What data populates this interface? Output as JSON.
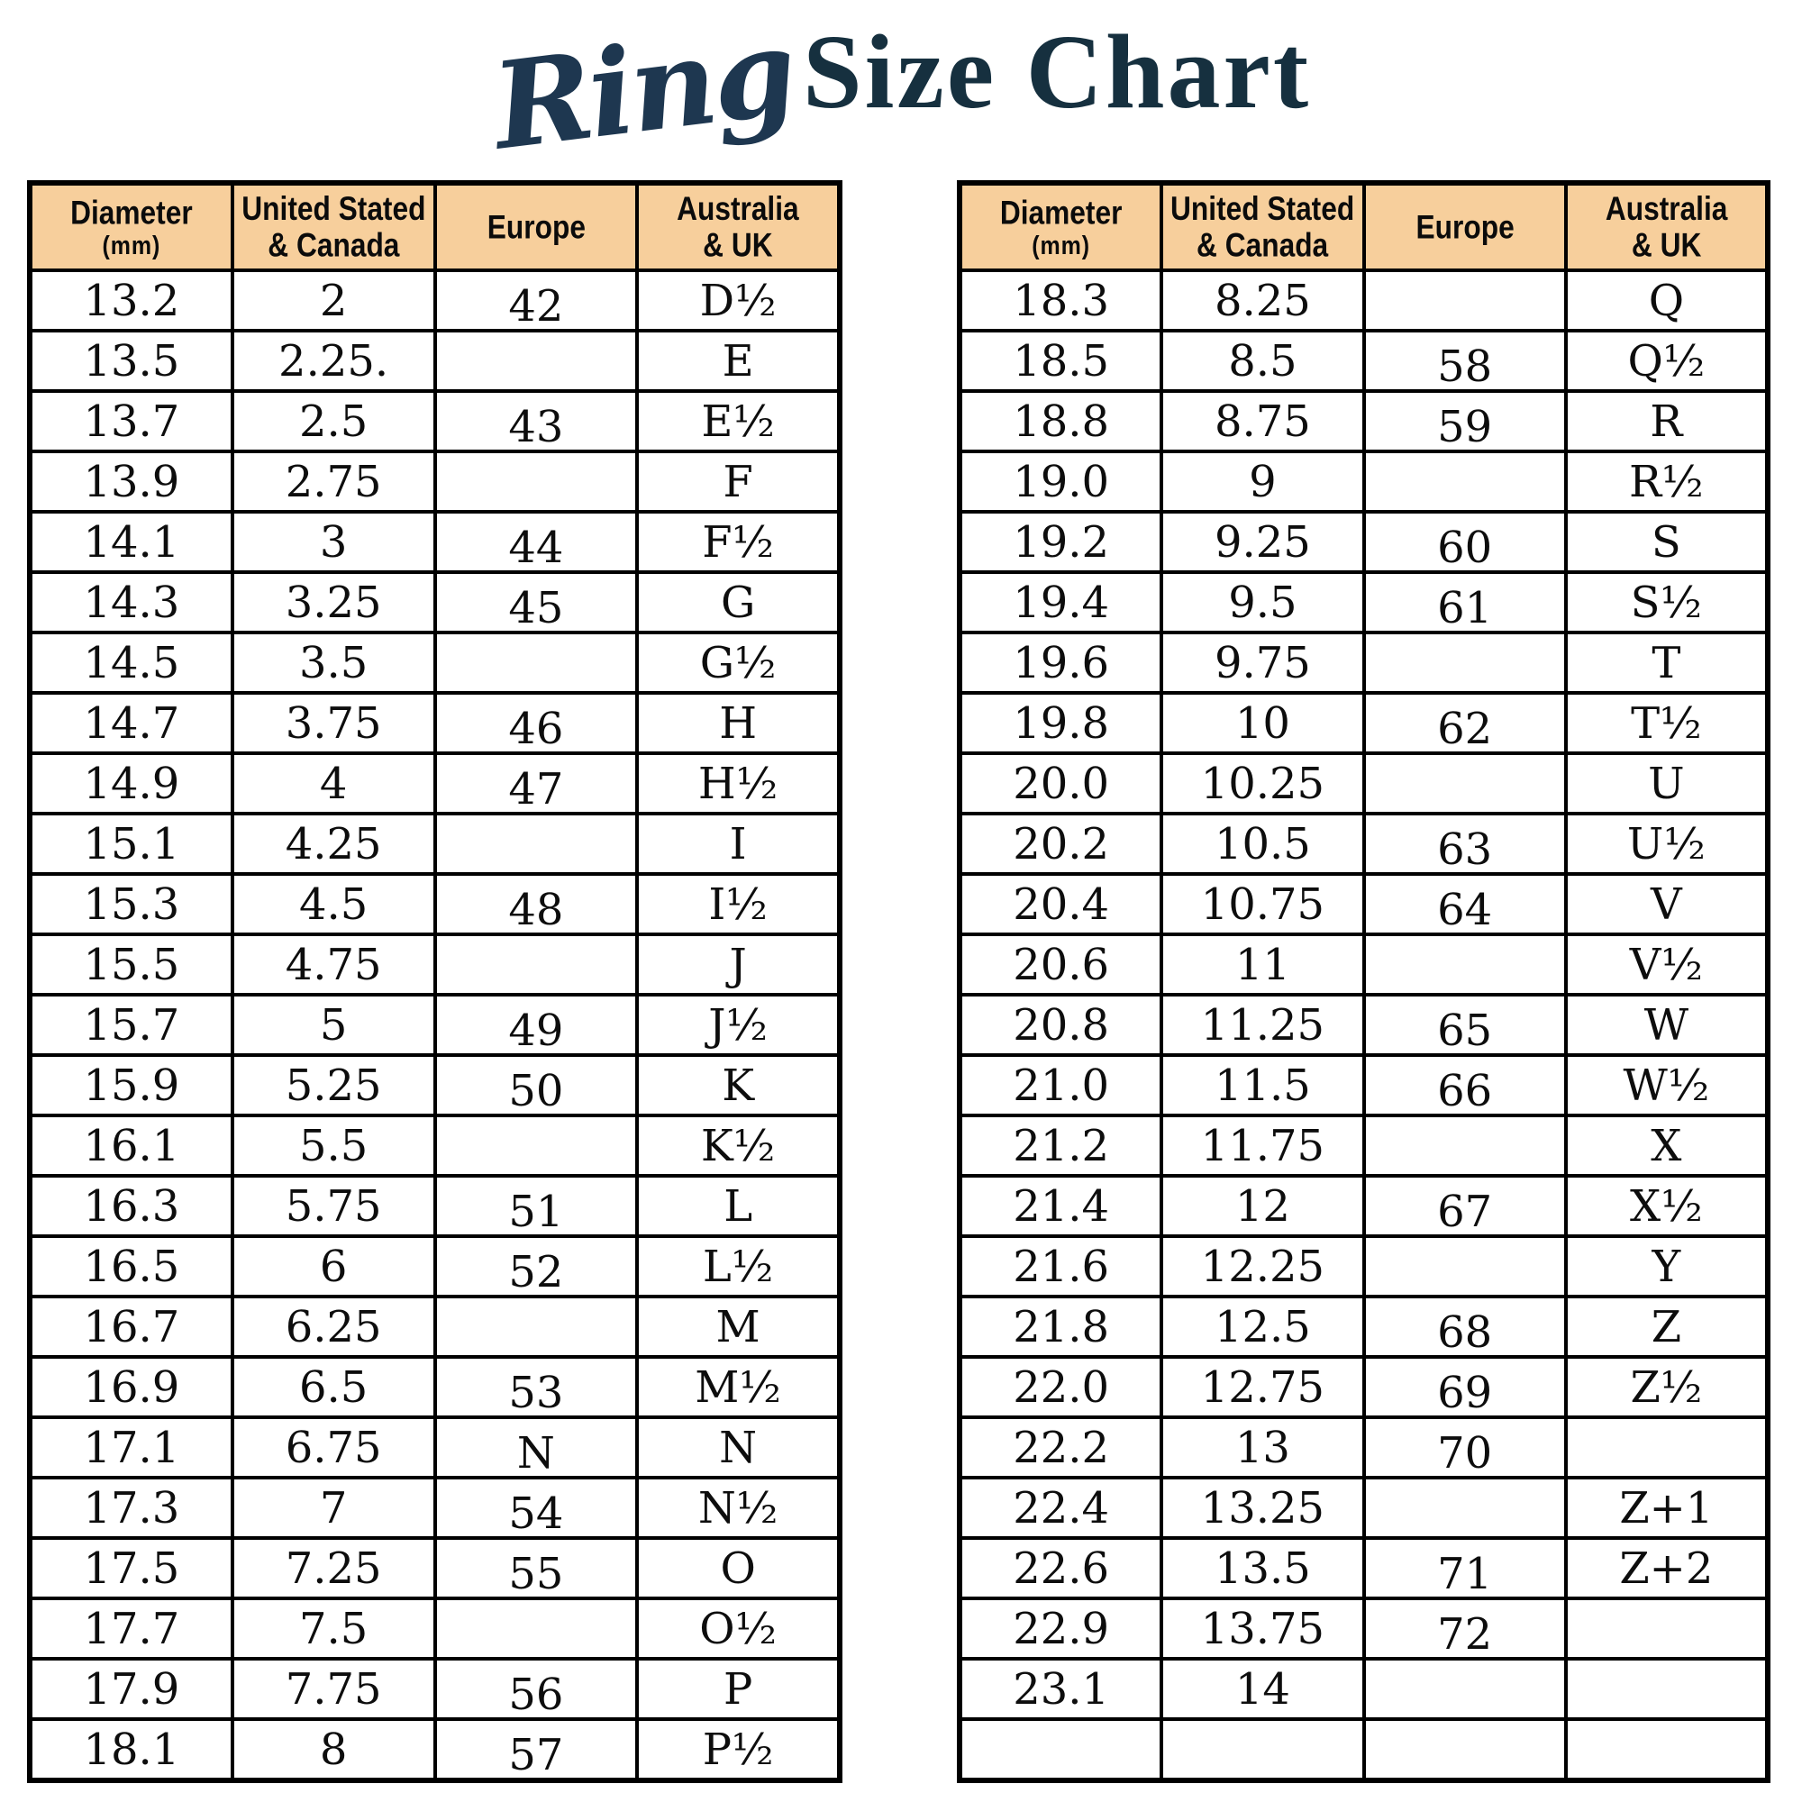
{
  "title": {
    "script": "Ring",
    "main": "Size Chart"
  },
  "colors": {
    "header_bg": "#f7cf9c",
    "border": "#000000",
    "title_navy": "#1e3750",
    "cell_text": "#0d0d0d",
    "page_bg": "#ffffff"
  },
  "tables": [
    {
      "name": "left-table",
      "columns": [
        {
          "key": "diameter",
          "label_line1": "Diameter",
          "label_line2": "(mm)"
        },
        {
          "key": "us-canada",
          "label_line1": "United Stated",
          "label_line2": "& Canada"
        },
        {
          "key": "europe",
          "label_line1": "Europe",
          "label_line2": ""
        },
        {
          "key": "australia-uk",
          "label_line1": "Australia",
          "label_line2": "& UK"
        }
      ],
      "rows": [
        [
          "13.2",
          "2",
          "42",
          "D½"
        ],
        [
          "13.5",
          "2.25.",
          "",
          "E"
        ],
        [
          "13.7",
          "2.5",
          "43",
          "E½"
        ],
        [
          "13.9",
          "2.75",
          "",
          "F"
        ],
        [
          "14.1",
          "3",
          "44",
          "F½"
        ],
        [
          "14.3",
          "3.25",
          "45",
          "G"
        ],
        [
          "14.5",
          "3.5",
          "",
          "G½"
        ],
        [
          "14.7",
          "3.75",
          "46",
          "H"
        ],
        [
          "14.9",
          "4",
          "47",
          "H½"
        ],
        [
          "15.1",
          "4.25",
          "",
          "I"
        ],
        [
          "15.3",
          "4.5",
          "48",
          "I½"
        ],
        [
          "15.5",
          "4.75",
          "",
          "J"
        ],
        [
          "15.7",
          "5",
          "49",
          "J½"
        ],
        [
          "15.9",
          "5.25",
          "50",
          "K"
        ],
        [
          "16.1",
          "5.5",
          "",
          "K½"
        ],
        [
          "16.3",
          "5.75",
          "51",
          "L"
        ],
        [
          "16.5",
          "6",
          "52",
          "L½"
        ],
        [
          "16.7",
          "6.25",
          "",
          "M"
        ],
        [
          "16.9",
          "6.5",
          "53",
          "M½"
        ],
        [
          "17.1",
          "6.75",
          "N",
          "N"
        ],
        [
          "17.3",
          "7",
          "54",
          "N½"
        ],
        [
          "17.5",
          "7.25",
          "55",
          "O"
        ],
        [
          "17.7",
          "7.5",
          "",
          "O½"
        ],
        [
          "17.9",
          "7.75",
          "56",
          "P"
        ],
        [
          "18.1",
          "8",
          "57",
          "P½"
        ]
      ]
    },
    {
      "name": "right-table",
      "columns": [
        {
          "key": "diameter",
          "label_line1": "Diameter",
          "label_line2": "(mm)"
        },
        {
          "key": "us-canada",
          "label_line1": "United Stated",
          "label_line2": "& Canada"
        },
        {
          "key": "europe",
          "label_line1": "Europe",
          "label_line2": ""
        },
        {
          "key": "australia-uk",
          "label_line1": "Australia",
          "label_line2": "& UK"
        }
      ],
      "rows": [
        [
          "18.3",
          "8.25",
          "",
          "Q"
        ],
        [
          "18.5",
          "8.5",
          "58",
          "Q½"
        ],
        [
          "18.8",
          "8.75",
          "59",
          "R"
        ],
        [
          "19.0",
          "9",
          "",
          "R½"
        ],
        [
          "19.2",
          "9.25",
          "60",
          "S"
        ],
        [
          "19.4",
          "9.5",
          "61",
          "S½"
        ],
        [
          "19.6",
          "9.75",
          "",
          "T"
        ],
        [
          "19.8",
          "10",
          "62",
          "T½"
        ],
        [
          "20.0",
          "10.25",
          "",
          "U"
        ],
        [
          "20.2",
          "10.5",
          "63",
          "U½"
        ],
        [
          "20.4",
          "10.75",
          "64",
          "V"
        ],
        [
          "20.6",
          "11",
          "",
          "V½"
        ],
        [
          "20.8",
          "11.25",
          "65",
          "W"
        ],
        [
          "21.0",
          "11.5",
          "66",
          "W½"
        ],
        [
          "21.2",
          "11.75",
          "",
          "X"
        ],
        [
          "21.4",
          "12",
          "67",
          "X½"
        ],
        [
          "21.6",
          "12.25",
          "",
          "Y"
        ],
        [
          "21.8",
          "12.5",
          "68",
          "Z"
        ],
        [
          "22.0",
          "12.75",
          "69",
          "Z½"
        ],
        [
          "22.2",
          "13",
          "70",
          ""
        ],
        [
          "22.4",
          "13.25",
          "",
          "Z+1"
        ],
        [
          "22.6",
          "13.5",
          "71",
          "Z+2"
        ],
        [
          "22.9",
          "13.75",
          "72",
          ""
        ],
        [
          "23.1",
          "14",
          "",
          ""
        ],
        [
          "",
          "",
          "",
          ""
        ]
      ]
    }
  ]
}
